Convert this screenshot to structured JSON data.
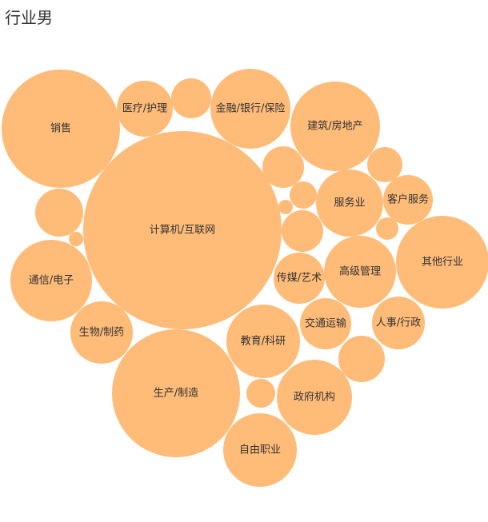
{
  "chart_data": {
    "type": "bubble",
    "title": "行业男",
    "bubble_color": "#ffbb78",
    "bubbles": [
      {
        "label": "计算机/互联网"
      },
      {
        "label": "销售"
      },
      {
        "label": "生产/制造"
      },
      {
        "label": "其他行业"
      },
      {
        "label": "建筑/房地产"
      },
      {
        "label": "通信/电子"
      },
      {
        "label": "金融/银行/保险"
      },
      {
        "label": "自由职业"
      },
      {
        "label": "教育/科研"
      },
      {
        "label": "政府机构"
      },
      {
        "label": "高级管理"
      },
      {
        "label": "服务业"
      },
      {
        "label": "生物/制药"
      },
      {
        "label": "传媒/艺术"
      },
      {
        "label": "医疗/护理"
      },
      {
        "label": "交通运输"
      },
      {
        "label": "人事/行政"
      },
      {
        "label": "客户服务"
      },
      {
        "label": ""
      },
      {
        "label": ""
      },
      {
        "label": ""
      },
      {
        "label": ""
      },
      {
        "label": ""
      },
      {
        "label": ""
      },
      {
        "label": ""
      },
      {
        "label": ""
      },
      {
        "label": ""
      },
      {
        "label": ""
      },
      {
        "label": ""
      }
    ]
  }
}
